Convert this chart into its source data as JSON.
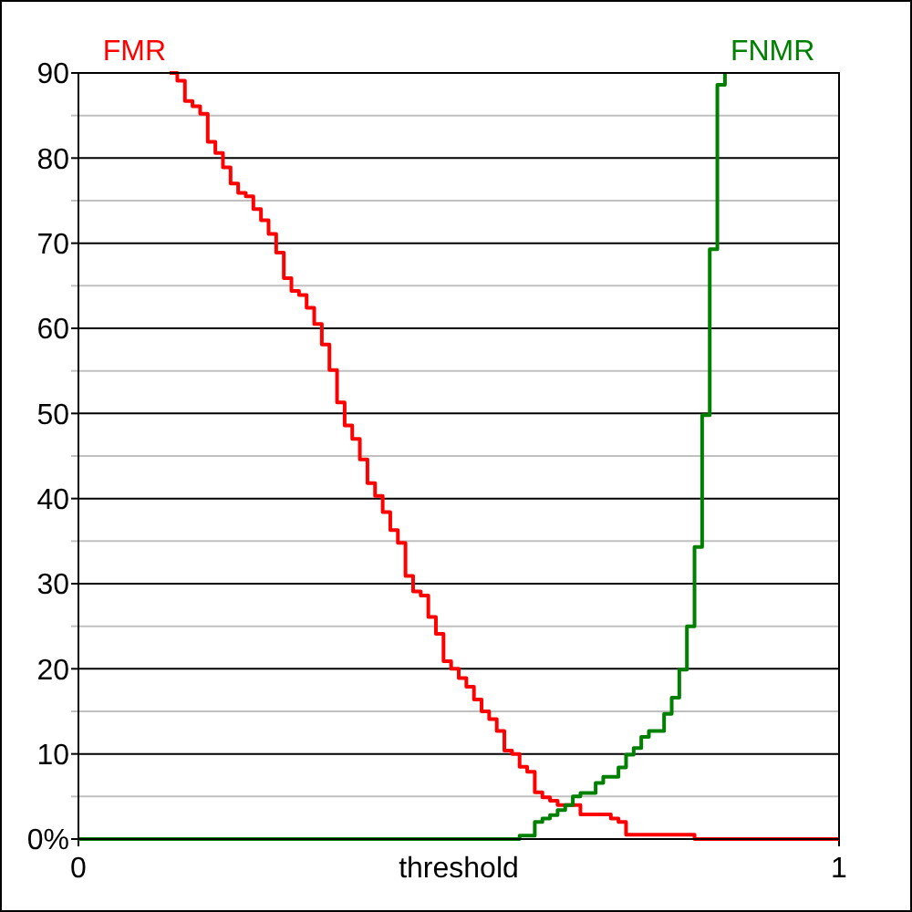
{
  "chart_data": {
    "type": "step",
    "xlabel": "threshold",
    "xlim": [
      0,
      1
    ],
    "xticks": [
      0,
      1
    ],
    "ylim": [
      0,
      90
    ],
    "yticks": [
      {
        "value": 0,
        "label": "0%"
      },
      {
        "value": 5,
        "label": null
      },
      10,
      {
        "value": 15,
        "label": null
      },
      20,
      {
        "value": 25,
        "label": null
      },
      30,
      {
        "value": 35,
        "label": null
      },
      40,
      {
        "value": 45,
        "label": null
      },
      50,
      {
        "value": 55,
        "label": null
      },
      60,
      {
        "value": 65,
        "label": null
      },
      70,
      {
        "value": 75,
        "label": null
      },
      80,
      {
        "value": 85,
        "label": null
      },
      90
    ],
    "grid": "y",
    "series": [
      {
        "name": "FMR",
        "color": "#ff0000",
        "x": [
          0.12,
          0.13,
          0.14,
          0.15,
          0.16,
          0.17,
          0.18,
          0.19,
          0.2,
          0.21,
          0.22,
          0.23,
          0.24,
          0.25,
          0.26,
          0.27,
          0.28,
          0.29,
          0.3,
          0.31,
          0.32,
          0.33,
          0.34,
          0.35,
          0.36,
          0.37,
          0.38,
          0.39,
          0.4,
          0.41,
          0.42,
          0.43,
          0.44,
          0.45,
          0.46,
          0.47,
          0.48,
          0.49,
          0.5,
          0.51,
          0.52,
          0.53,
          0.54,
          0.55,
          0.56,
          0.57,
          0.58,
          0.59,
          0.6,
          0.61,
          0.62,
          0.63,
          0.66,
          0.7,
          0.71,
          0.72,
          0.81,
          1
        ],
        "values": [
          90,
          89.1,
          86.7,
          86.1,
          85.2,
          81.9,
          80.6,
          78.9,
          77.0,
          75.9,
          75.5,
          74.0,
          72.7,
          71.1,
          68.9,
          65.9,
          64.4,
          63.9,
          62.4,
          60.5,
          58.1,
          55.1,
          51.3,
          48.6,
          47.0,
          44.6,
          41.8,
          40.3,
          38.4,
          36.3,
          34.8,
          30.9,
          29.1,
          28.6,
          26.1,
          24.1,
          20.9,
          20.0,
          18.9,
          17.9,
          16.4,
          15.0,
          14.1,
          12.7,
          10.4,
          10.0,
          8.5,
          7.9,
          5.5,
          4.9,
          4.5,
          4.0,
          2.9,
          2.4,
          2.0,
          0.5,
          0,
          0
        ]
      },
      {
        "name": "FNMR",
        "color": "#008000",
        "x": [
          0,
          0.58,
          0.6,
          0.61,
          0.62,
          0.63,
          0.64,
          0.65,
          0.66,
          0.68,
          0.69,
          0.71,
          0.72,
          0.73,
          0.74,
          0.75,
          0.77,
          0.78,
          0.79,
          0.8,
          0.81,
          0.82,
          0.83,
          0.84,
          0.85
        ],
        "values": [
          0,
          0.4,
          2.0,
          2.4,
          2.8,
          3.4,
          4.0,
          5.0,
          5.4,
          6.6,
          7.3,
          8.4,
          9.9,
          10.7,
          12.0,
          12.7,
          14.7,
          16.6,
          19.9,
          25.0,
          34.3,
          49.8,
          69.3,
          88.6,
          90
        ]
      }
    ]
  }
}
